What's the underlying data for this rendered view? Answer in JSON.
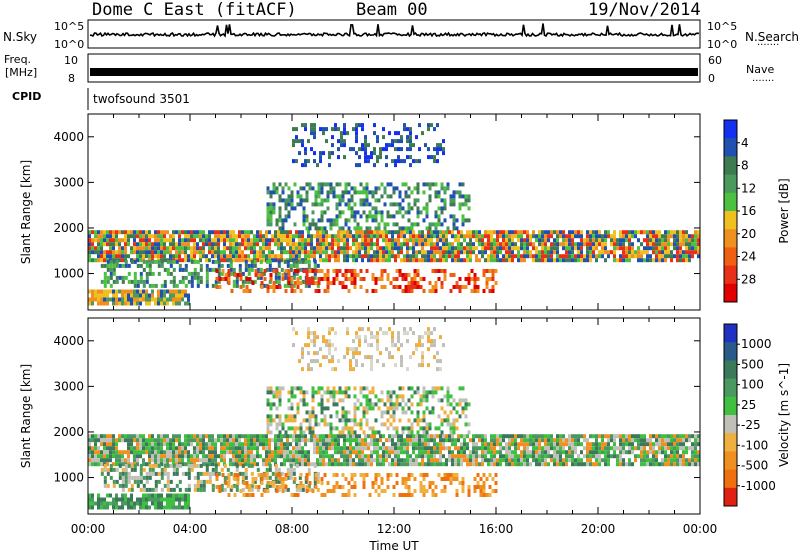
{
  "header": {
    "station": "Dome C East (fitACF)",
    "beam": "Beam 00",
    "date": "19/Nov/2014"
  },
  "aux_panels": {
    "nsky_label": "N.Sky",
    "nsky_top": "10^5",
    "nsky_bottom": "10^0",
    "nsearch_label": "N.Search",
    "nsearch_top": "10^5",
    "nsearch_bottom": "10^0",
    "freq_label": "Freq.",
    "freq_unit": "[MHz]",
    "freq_top": "10",
    "freq_bottom": "8",
    "nave_label": "Nave",
    "nave_top": "60",
    "nave_bottom": "0",
    "cpid_label": "CPID",
    "cpid_value": "twofsound 3501",
    "dots": "......."
  },
  "chart_data": [
    {
      "type": "heatmap",
      "name": "power",
      "ylabel": "Slant Range [km]",
      "yticks": [
        1000,
        2000,
        3000,
        4000
      ],
      "ylim": [
        200,
        4500
      ],
      "xlim_hours": [
        0,
        24
      ],
      "colorbar": {
        "label": "Power [dB]",
        "ticks": [
          "4",
          "8",
          "12",
          "16",
          "20",
          "24",
          "28"
        ],
        "colors": [
          "#1530f0",
          "#2050b0",
          "#3e7a52",
          "#4a9a60",
          "#4cc040",
          "#f0c020",
          "#f09020",
          "#f06010",
          "#e83018",
          "#e00000"
        ]
      },
      "bands": [
        {
          "from": 0,
          "to": 24,
          "low": 1250,
          "high": 1950,
          "density": 0.85,
          "palette": [
            "#f09020",
            "#4cc040",
            "#3e7a52",
            "#f0c020",
            "#e83018",
            "#2050b0"
          ]
        },
        {
          "from": 0.5,
          "to": 9,
          "low": 700,
          "high": 1300,
          "density": 0.5,
          "palette": [
            "#3e7a52",
            "#4a9a60",
            "#2050b0",
            "#4cc040"
          ]
        },
        {
          "from": 7,
          "to": 15,
          "low": 2000,
          "high": 3000,
          "density": 0.45,
          "palette": [
            "#3e7a52",
            "#4cc040",
            "#2050b0",
            "#4a9a60"
          ]
        },
        {
          "from": 8,
          "to": 14,
          "low": 3400,
          "high": 4300,
          "density": 0.3,
          "palette": [
            "#2050b0",
            "#3e7a52",
            "#1530f0"
          ]
        },
        {
          "from": 5,
          "to": 16,
          "low": 600,
          "high": 1100,
          "density": 0.4,
          "palette": [
            "#e83018",
            "#f06010",
            "#e00000",
            "#f09020"
          ]
        },
        {
          "from": 0,
          "to": 4,
          "low": 350,
          "high": 650,
          "density": 0.85,
          "palette": [
            "#f0c020",
            "#f09020",
            "#4a9a60",
            "#2050b0"
          ]
        }
      ]
    },
    {
      "type": "heatmap",
      "name": "velocity",
      "ylabel": "Slant Range [km]",
      "xlabel": "Time UT",
      "xticks": [
        "00:00",
        "04:00",
        "08:00",
        "12:00",
        "16:00",
        "20:00",
        "00:00"
      ],
      "yticks": [
        1000,
        2000,
        3000,
        4000
      ],
      "ylim": [
        200,
        4500
      ],
      "xlim_hours": [
        0,
        24
      ],
      "colorbar": {
        "label": "Velocity [m s^-1]",
        "ticks": [
          "1000",
          "500",
          "100",
          "25",
          "-25",
          "-100",
          "-500",
          "-1000"
        ],
        "colors": [
          "#2030c0",
          "#2a5a8a",
          "#3a7a5a",
          "#4a9a60",
          "#40c040",
          "#c0c0b8",
          "#f0b040",
          "#f09020",
          "#f07010",
          "#e02010"
        ]
      },
      "bands": [
        {
          "from": 0,
          "to": 24,
          "low": 1250,
          "high": 1950,
          "density": 0.85,
          "palette": [
            "#c0c0b8",
            "#3a7a5a",
            "#4a9a60",
            "#f09020",
            "#40c040"
          ]
        },
        {
          "from": 0.5,
          "to": 9,
          "low": 700,
          "high": 1300,
          "density": 0.5,
          "palette": [
            "#3a7a5a",
            "#4a9a60",
            "#c0c0b8",
            "#f0b040"
          ]
        },
        {
          "from": 7,
          "to": 15,
          "low": 2000,
          "high": 3000,
          "density": 0.45,
          "palette": [
            "#c0c0b8",
            "#f0b040",
            "#40c040",
            "#3a7a5a"
          ]
        },
        {
          "from": 8,
          "to": 14,
          "low": 3400,
          "high": 4300,
          "density": 0.3,
          "palette": [
            "#c0c0b8",
            "#f0b040",
            "#d8d8c8"
          ]
        },
        {
          "from": 5,
          "to": 16,
          "low": 600,
          "high": 1100,
          "density": 0.4,
          "palette": [
            "#f09020",
            "#f07010",
            "#f0b040"
          ]
        },
        {
          "from": 0,
          "to": 4,
          "low": 350,
          "high": 650,
          "density": 0.85,
          "palette": [
            "#3a7a5a",
            "#4a9a60",
            "#40c040"
          ]
        }
      ]
    }
  ]
}
